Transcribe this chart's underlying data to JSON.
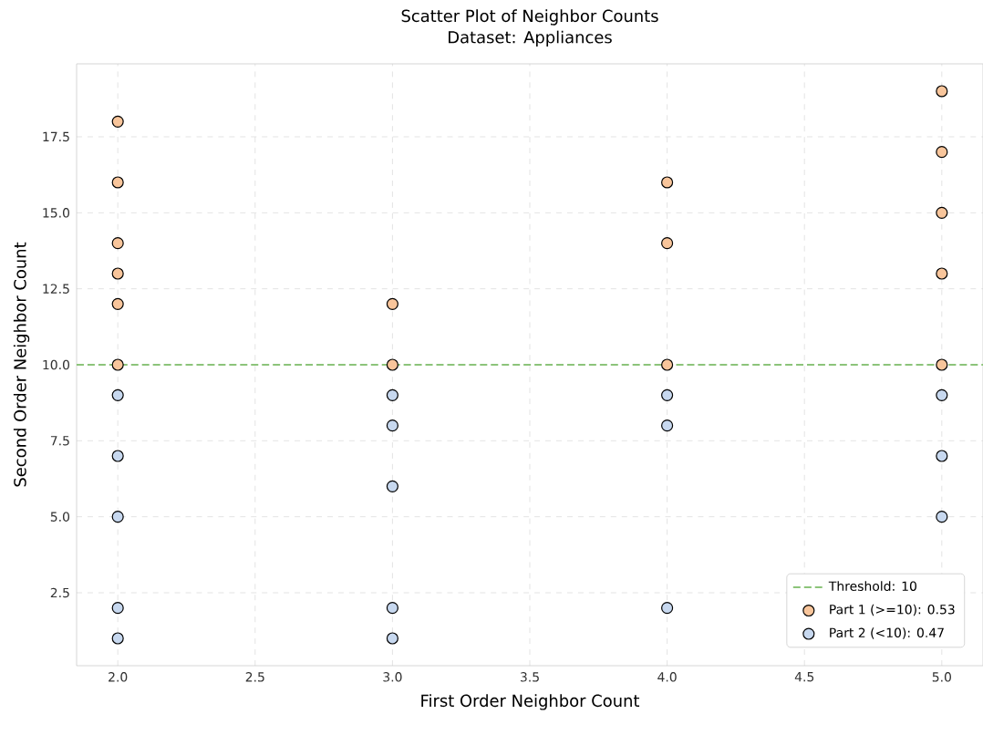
{
  "chart_data": {
    "type": "scatter",
    "title": "Scatter Plot of Neighbor Counts",
    "subtitle": "Dataset: Appliances",
    "xlabel": "First Order Neighbor Count",
    "ylabel": "Second Order Neighbor Count",
    "xlim": [
      1.85,
      5.15
    ],
    "ylim": [
      0.1,
      19.9
    ],
    "xticks": [
      {
        "value": 2,
        "label": "2.0"
      },
      {
        "value": 2.5,
        "label": "2.5"
      },
      {
        "value": 3,
        "label": "3.0"
      },
      {
        "value": 3.5,
        "label": "3.5"
      },
      {
        "value": 4,
        "label": "4.0"
      },
      {
        "value": 4.5,
        "label": "4.5"
      },
      {
        "value": 5,
        "label": "5.0"
      }
    ],
    "yticks": [
      2.5,
      {
        "value": 5,
        "label": "5.0"
      },
      7.5,
      {
        "value": 10,
        "label": "10.0"
      },
      12.5,
      {
        "value": 15,
        "label": "15.0"
      },
      17.5
    ],
    "grid": true,
    "legend": "bottom right",
    "ref_lines": [
      {
        "axis": "y",
        "value": 10,
        "label": "Threshold: 10",
        "color": "#8cc47a",
        "line_style": "dashed"
      }
    ],
    "series": [
      {
        "name": "Part 1 (>=10): 0.53",
        "color": "#f8c59b",
        "x": [
          2,
          2,
          2,
          2,
          2,
          2,
          3,
          3,
          4,
          4,
          4,
          5,
          5,
          5,
          5,
          5
        ],
        "values": [
          18,
          16,
          14,
          13,
          12,
          10,
          12,
          10,
          16,
          14,
          10,
          19,
          17,
          15,
          13,
          10
        ]
      },
      {
        "name": "Part 2 (<10): 0.47",
        "color": "#c7d8ef",
        "x": [
          2,
          2,
          2,
          2,
          2,
          3,
          3,
          3,
          3,
          3,
          4,
          4,
          4,
          5,
          5,
          5
        ],
        "values": [
          9,
          7,
          5,
          2,
          1,
          9,
          8,
          6,
          2,
          1,
          9,
          8,
          2,
          9,
          7,
          5
        ]
      }
    ]
  }
}
